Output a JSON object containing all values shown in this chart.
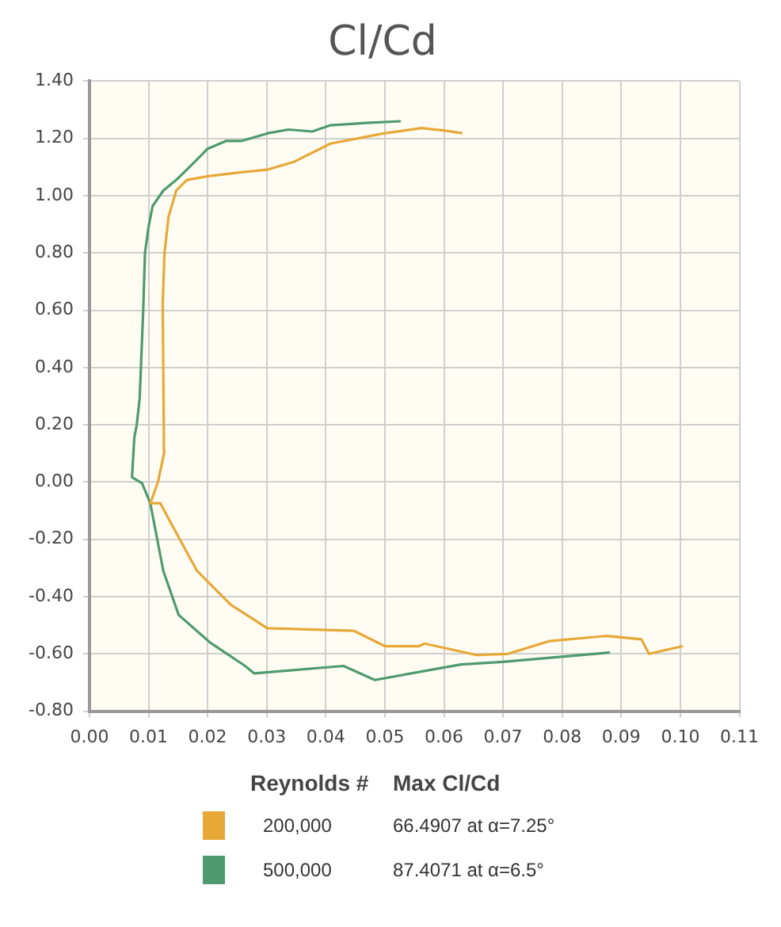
{
  "chart_data": {
    "type": "line",
    "title": "Cl/Cd",
    "marker": "none",
    "grid": true,
    "legend": "bottom",
    "legend_title": "Reynolds #",
    "annotations": [
      "Max Cl/Cd",
      "66.4907 at α=7.25°",
      "87.4071 at α=6.5°"
    ],
    "xlim": [
      0,
      0.11
    ],
    "xticks": [
      {
        "value": 0,
        "label": "0.00"
      },
      {
        "value": 0.01,
        "label": "0.01"
      },
      {
        "value": 0.02,
        "label": "0.02"
      },
      {
        "value": 0.03,
        "label": "0.03"
      },
      {
        "value": 0.04,
        "label": "0.04"
      },
      {
        "value": 0.05,
        "label": "0.05"
      },
      {
        "value": 0.06,
        "label": "0.06"
      },
      {
        "value": 0.07,
        "label": "0.07"
      },
      {
        "value": 0.08,
        "label": "0.08"
      },
      {
        "value": 0.09,
        "label": "0.09"
      },
      {
        "value": 0.1,
        "label": "0.10"
      },
      {
        "value": 0.11,
        "label": "0.11"
      }
    ],
    "ylim": [
      -0.8,
      1.4
    ],
    "yticks": [
      {
        "value": -0.8,
        "label": "-0.80"
      },
      {
        "value": -0.6,
        "label": "-0.60"
      },
      {
        "value": -0.4,
        "label": "-0.40"
      },
      {
        "value": -0.2,
        "label": "-0.20"
      },
      {
        "value": 0,
        "label": "0.00"
      },
      {
        "value": 0.2,
        "label": "0.20"
      },
      {
        "value": 0.4,
        "label": "0.40"
      },
      {
        "value": 0.6,
        "label": "0.60"
      },
      {
        "value": 0.8,
        "label": "0.80"
      },
      {
        "value": 1,
        "label": "1.00"
      },
      {
        "value": 1.2,
        "label": "1.20"
      },
      {
        "value": 1.4,
        "label": "1.40"
      }
    ],
    "series": [
      {
        "name": "200,000",
        "color": "#e8a838",
        "x": [
          0.1004,
          0.0947,
          0.0934,
          0.0876,
          0.0779,
          0.0708,
          0.0655,
          0.0567,
          0.0558,
          0.05,
          0.0447,
          0.0301,
          0.0239,
          0.0182,
          0.0134,
          0.012,
          0.0103,
          0.0116,
          0.0127,
          0.0126,
          0.0124,
          0.0127,
          0.0134,
          0.0147,
          0.0165,
          0.0204,
          0.0257,
          0.0302,
          0.0346,
          0.0408,
          0.05,
          0.0562,
          0.0602,
          0.0631
        ],
        "values": [
          -0.573,
          -0.6,
          -0.549,
          -0.537,
          -0.555,
          -0.6,
          -0.604,
          -0.564,
          -0.573,
          -0.573,
          -0.519,
          -0.51,
          -0.428,
          -0.31,
          -0.128,
          -0.074,
          -0.074,
          0,
          0.108,
          0.155,
          0.62,
          0.8,
          0.928,
          1.018,
          1.055,
          1.069,
          1.082,
          1.091,
          1.118,
          1.182,
          1.218,
          1.236,
          1.227,
          1.218
        ]
      },
      {
        "name": "500,000",
        "color": "#4f9a6e",
        "x": [
          0.0881,
          0.0699,
          0.0629,
          0.0483,
          0.043,
          0.0279,
          0.0262,
          0.0204,
          0.0151,
          0.0125,
          0.0103,
          0.0089,
          0.0072,
          0.0076,
          0.008,
          0.0085,
          0.0091,
          0.0094,
          0.01,
          0.0107,
          0.0125,
          0.0147,
          0.0178,
          0.02,
          0.0231,
          0.0257,
          0.0302,
          0.0337,
          0.0377,
          0.0408,
          0.0469,
          0.0527
        ],
        "values": [
          -0.595,
          -0.628,
          -0.637,
          -0.691,
          -0.642,
          -0.668,
          -0.64,
          -0.56,
          -0.464,
          -0.31,
          -0.074,
          -0.004,
          0.017,
          0.156,
          0.199,
          0.292,
          0.6,
          0.8,
          0.891,
          0.964,
          1.018,
          1.055,
          1.118,
          1.164,
          1.191,
          1.191,
          1.218,
          1.231,
          1.224,
          1.246,
          1.254,
          1.26
        ]
      }
    ]
  }
}
